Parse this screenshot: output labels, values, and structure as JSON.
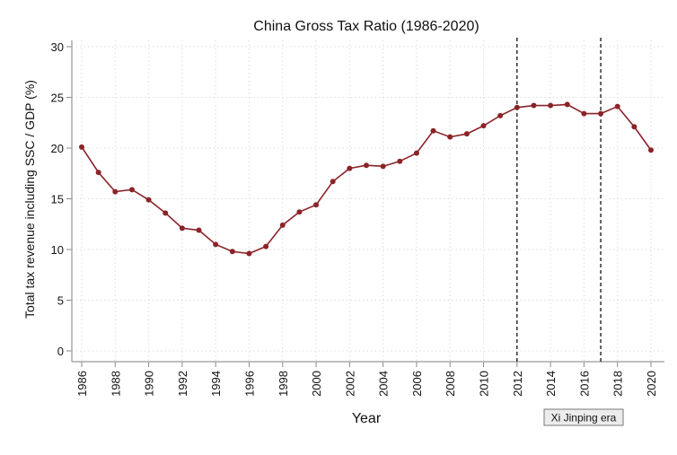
{
  "chart_data": {
    "type": "line",
    "title": "China Gross Tax Ratio (1986-2020)",
    "xlabel": "Year",
    "ylabel": "Total tax revenue including SSC / GDP (%)",
    "xlim": [
      1986,
      2020
    ],
    "ylim": [
      0,
      30
    ],
    "yticks": [
      0,
      5,
      10,
      15,
      20,
      25,
      30
    ],
    "xticks": [
      1986,
      1988,
      1990,
      1992,
      1994,
      1996,
      1998,
      2000,
      2002,
      2004,
      2006,
      2008,
      2010,
      2012,
      2014,
      2016,
      2018,
      2020
    ],
    "grid": true,
    "line_color": "#8b2328",
    "x": [
      1986,
      1987,
      1988,
      1989,
      1990,
      1991,
      1992,
      1993,
      1994,
      1995,
      1996,
      1997,
      1998,
      1999,
      2000,
      2001,
      2002,
      2003,
      2004,
      2005,
      2006,
      2007,
      2008,
      2009,
      2010,
      2011,
      2012,
      2013,
      2014,
      2015,
      2016,
      2017,
      2018,
      2019,
      2020
    ],
    "values": [
      20.1,
      17.6,
      15.7,
      15.9,
      14.9,
      13.6,
      12.1,
      11.9,
      10.5,
      9.8,
      9.6,
      10.3,
      12.4,
      13.7,
      14.4,
      16.7,
      18.0,
      18.3,
      18.2,
      18.7,
      19.5,
      21.7,
      21.1,
      21.4,
      22.2,
      23.2,
      24.0,
      24.2,
      24.2,
      24.3,
      23.4,
      23.4,
      24.1,
      22.1,
      19.8
    ],
    "reference_lines": [
      2012,
      2017
    ],
    "annotation": "Xi Jinping era"
  }
}
